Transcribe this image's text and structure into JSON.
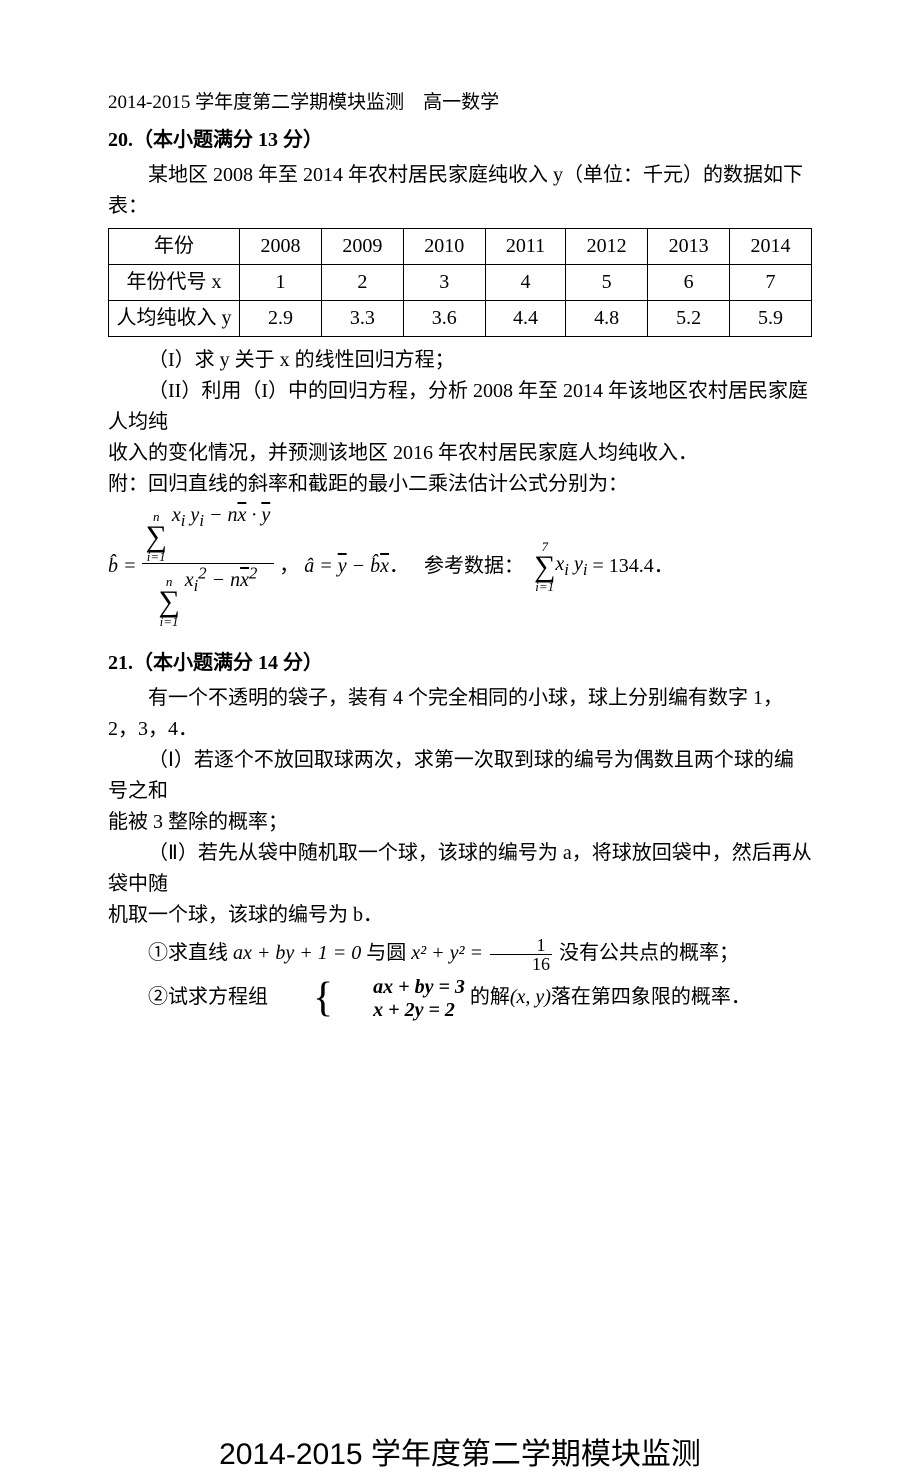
{
  "header": "2014-2015 学年度第二学期模块监测　高一数学",
  "p20": {
    "heading": "20.（本小题满分 13 分）",
    "intro": "某地区 2008 年至 2014 年农村居民家庭纯收入 y（单位：千元）的数据如下表：",
    "table": {
      "row_labels": [
        "年份",
        "年份代号 x",
        "人均纯收入 y"
      ],
      "columns": [
        "2008",
        "2009",
        "2010",
        "2011",
        "2012",
        "2013",
        "2014"
      ],
      "row_x": [
        "1",
        "2",
        "3",
        "4",
        "5",
        "6",
        "7"
      ],
      "row_y": [
        "2.9",
        "3.3",
        "3.6",
        "4.4",
        "4.8",
        "5.2",
        "5.9"
      ]
    },
    "q1": "（I）求 y 关于 x 的线性回归方程；",
    "q2a": "（II）利用（I）中的回归方程，分析 2008 年至 2014 年该地区农村居民家庭人均纯",
    "q2b": "收入的变化情况，并预测该地区 2016 年农村居民家庭人均纯收入．",
    "attach": "附：回归直线的斜率和截距的最小二乘法估计公式分别为：",
    "ref_label": "参考数据：",
    "ref_value": "= 134.4",
    "sum_upper": "7"
  },
  "p21": {
    "heading": "21.（本小题满分 14 分）",
    "intro": "有一个不透明的袋子，装有 4 个完全相同的小球，球上分别编有数字 1，2，3，4．",
    "q1a": "（Ⅰ）若逐个不放回取球两次，求第一次取到球的编号为偶数且两个球的编号之和",
    "q1b": "能被 3 整除的概率；",
    "q2a": "（Ⅱ）若先从袋中随机取一个球，该球的编号为 a，将球放回袋中，然后再从袋中随",
    "q2b": "机取一个球，该球的编号为 b．",
    "sub1_pre": "①求直线 ",
    "sub1_line": "ax + by + 1 = 0",
    "sub1_mid": " 与圆 ",
    "sub1_circ": "x² + y² = ",
    "sub1_frac_n": "1",
    "sub1_frac_d": "16",
    "sub1_post": " 没有公共点的概率；",
    "sub2_pre": "②试求方程组",
    "sub2_eq1": "ax + by = 3",
    "sub2_eq2": "x + 2y = 2",
    "sub2_mid": "的解",
    "sub2_xy": "(x, y)",
    "sub2_post": "落在第四象限的概率．"
  },
  "footer_title": "2014-2015 学年度第二学期模块监测"
}
